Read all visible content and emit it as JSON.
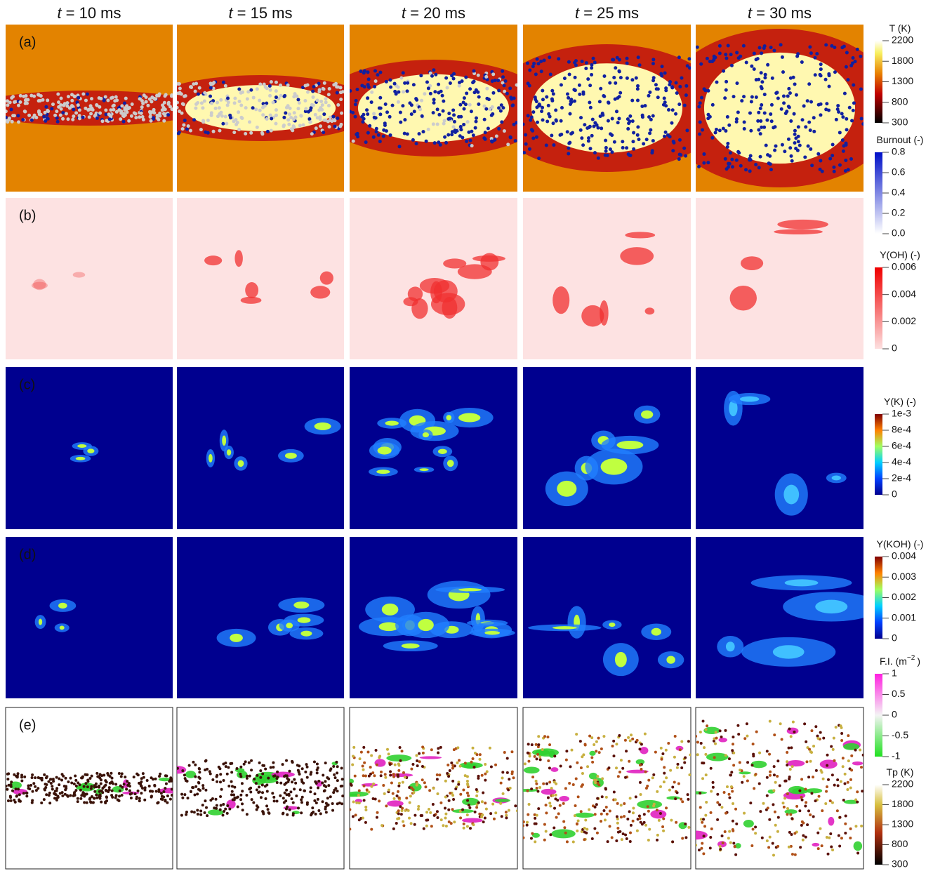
{
  "columns": [
    {
      "symbol": "t",
      "text": "= 10 ms"
    },
    {
      "symbol": "t",
      "text": "= 15 ms"
    },
    {
      "symbol": "t",
      "text": "= 20 ms"
    },
    {
      "symbol": "t",
      "text": "= 25 ms"
    },
    {
      "symbol": "t",
      "text": "= 30 ms"
    }
  ],
  "rows": [
    "(a)",
    "(b)",
    "(c)",
    "(d)",
    "(e)"
  ],
  "colorbars": [
    {
      "title": "T (K)",
      "ticks": [
        "2200",
        "1800",
        "1300",
        "800",
        "300"
      ]
    },
    {
      "title": "Burnout (-)",
      "ticks": [
        "0.8",
        "0.6",
        "0.4",
        "0.2",
        "0.0"
      ]
    },
    {
      "title": "Y(OH) (-)",
      "ticks": [
        "0.006",
        "0.004",
        "0.002",
        "0"
      ]
    },
    {
      "title": "Y(K) (-)",
      "ticks": [
        "1e-3",
        "8e-4",
        "6e-4",
        "4e-4",
        "2e-4",
        "0"
      ]
    },
    {
      "title": "Y(KOH) (-)",
      "ticks": [
        "0.004",
        "0.003",
        "0.002",
        "0.001",
        "0"
      ]
    },
    {
      "title": "F.I. (m",
      "title_sup": "−2",
      "title_end": ")",
      "ticks": [
        "1",
        "0.5",
        "0",
        "-0.5",
        "-1"
      ]
    },
    {
      "title": "Tp (K)",
      "ticks": [
        "2200",
        "1800",
        "1300",
        "800",
        "300"
      ]
    }
  ]
}
